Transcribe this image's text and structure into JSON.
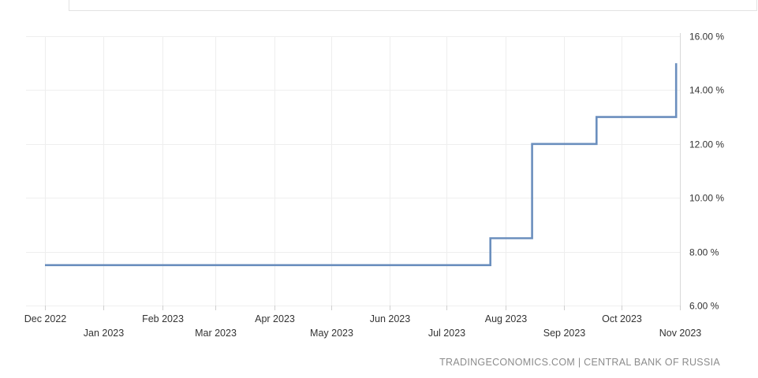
{
  "chart_data": {
    "type": "line",
    "step": true,
    "title": "",
    "xlabel": "",
    "ylabel": "",
    "y_unit": "%",
    "ylim": [
      6,
      16
    ],
    "y_ticks": [
      "6.00 %",
      "8.00 %",
      "10.00 %",
      "12.00 %",
      "14.00 %",
      "16.00 %"
    ],
    "y_tick_values": [
      6,
      8,
      10,
      12,
      14,
      16
    ],
    "x_ticks": [
      {
        "label": "Dec 2022",
        "date": "2022-12-01"
      },
      {
        "label": "Jan 2023",
        "date": "2023-01-01"
      },
      {
        "label": "Feb 2023",
        "date": "2023-02-01"
      },
      {
        "label": "Mar 2023",
        "date": "2023-03-01"
      },
      {
        "label": "Apr 2023",
        "date": "2023-04-01"
      },
      {
        "label": "May 2023",
        "date": "2023-05-01"
      },
      {
        "label": "Jun 2023",
        "date": "2023-06-01"
      },
      {
        "label": "Jul 2023",
        "date": "2023-07-01"
      },
      {
        "label": "Aug 2023",
        "date": "2023-08-01"
      },
      {
        "label": "Sep 2023",
        "date": "2023-09-01"
      },
      {
        "label": "Oct 2023",
        "date": "2023-10-01"
      },
      {
        "label": "Nov 2023",
        "date": "2023-11-01"
      }
    ],
    "grid": true,
    "legend": "none",
    "series": [
      {
        "color": "#6b8fbe",
        "points": [
          {
            "x": "2022-12-01",
            "y": 7.5
          },
          {
            "x": "2023-07-24",
            "y": 7.5
          },
          {
            "x": "2023-07-24",
            "y": 8.5
          },
          {
            "x": "2023-08-15",
            "y": 8.5
          },
          {
            "x": "2023-08-15",
            "y": 12.0
          },
          {
            "x": "2023-09-18",
            "y": 12.0
          },
          {
            "x": "2023-09-18",
            "y": 13.0
          },
          {
            "x": "2023-10-30",
            "y": 13.0
          },
          {
            "x": "2023-10-30",
            "y": 15.0
          }
        ]
      }
    ]
  },
  "source": "TRADINGECONOMICS.COM | CENTRAL BANK OF RUSSIA"
}
